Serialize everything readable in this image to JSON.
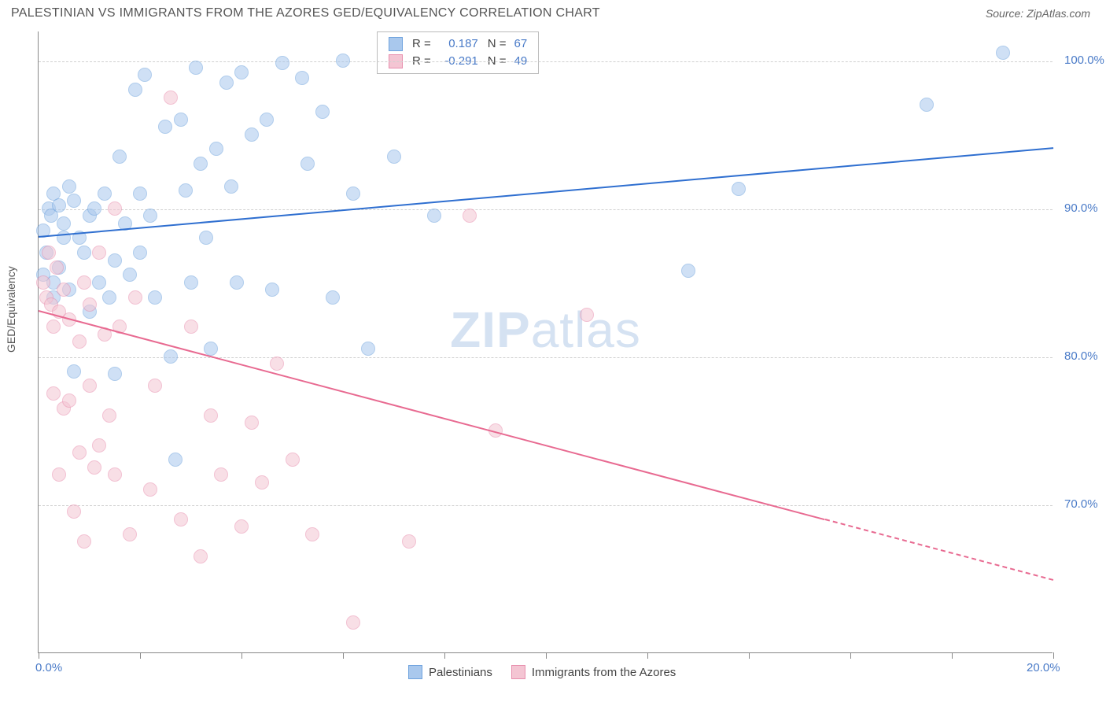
{
  "title": "PALESTINIAN VS IMMIGRANTS FROM THE AZORES GED/EQUIVALENCY CORRELATION CHART",
  "source_label": "Source: ",
  "source_name": "ZipAtlas.com",
  "watermark_bold": "ZIP",
  "watermark_light": "atlas",
  "yaxis_title": "GED/Equivalency",
  "chart": {
    "type": "scatter",
    "xlim": [
      0,
      20
    ],
    "ylim": [
      60,
      102
    ],
    "xtick_positions": [
      0,
      2,
      4,
      6,
      8,
      10,
      12,
      14,
      16,
      18,
      20
    ],
    "xtick_labels": {
      "0": "0.0%",
      "20": "20.0%"
    },
    "ytick_positions": [
      70,
      80,
      90,
      100
    ],
    "ytick_labels": {
      "70": "70.0%",
      "80": "80.0%",
      "90": "90.0%",
      "100": "100.0%"
    },
    "grid_color": "#d0d0d0",
    "axis_color": "#888888",
    "background_color": "#ffffff",
    "label_color": "#4a7bc8",
    "marker_radius": 9
  },
  "series": [
    {
      "name": "Palestinians",
      "fill_color": "#a9c8ed",
      "stroke_color": "#6fa3de",
      "line_color": "#2f6fd0",
      "R": "0.187",
      "N": "67",
      "trend": {
        "x1": 0,
        "y1": 88.2,
        "x2": 20,
        "y2": 94.2,
        "dash_from_x": null
      },
      "points": [
        [
          0.1,
          88.5
        ],
        [
          0.1,
          85.5
        ],
        [
          0.15,
          87.0
        ],
        [
          0.2,
          90.0
        ],
        [
          0.25,
          89.5
        ],
        [
          0.3,
          91.0
        ],
        [
          0.3,
          85.0
        ],
        [
          0.3,
          84.0
        ],
        [
          0.4,
          90.2
        ],
        [
          0.4,
          86.0
        ],
        [
          0.5,
          89.0
        ],
        [
          0.5,
          88.0
        ],
        [
          0.6,
          91.5
        ],
        [
          0.6,
          84.5
        ],
        [
          0.7,
          90.5
        ],
        [
          0.7,
          79.0
        ],
        [
          0.8,
          88.0
        ],
        [
          0.9,
          87.0
        ],
        [
          1.0,
          89.5
        ],
        [
          1.0,
          83.0
        ],
        [
          1.1,
          90.0
        ],
        [
          1.2,
          85.0
        ],
        [
          1.3,
          91.0
        ],
        [
          1.4,
          84.0
        ],
        [
          1.5,
          86.5
        ],
        [
          1.5,
          78.8
        ],
        [
          1.6,
          93.5
        ],
        [
          1.7,
          89.0
        ],
        [
          1.8,
          85.5
        ],
        [
          1.9,
          98.0
        ],
        [
          2.0,
          91.0
        ],
        [
          2.0,
          87.0
        ],
        [
          2.1,
          99.0
        ],
        [
          2.2,
          89.5
        ],
        [
          2.3,
          84.0
        ],
        [
          2.5,
          95.5
        ],
        [
          2.6,
          80.0
        ],
        [
          2.7,
          73.0
        ],
        [
          2.8,
          96.0
        ],
        [
          2.9,
          91.2
        ],
        [
          3.0,
          85.0
        ],
        [
          3.1,
          99.5
        ],
        [
          3.2,
          93.0
        ],
        [
          3.3,
          88.0
        ],
        [
          3.4,
          80.5
        ],
        [
          3.5,
          94.0
        ],
        [
          3.7,
          98.5
        ],
        [
          3.8,
          91.5
        ],
        [
          3.9,
          85.0
        ],
        [
          4.0,
          99.2
        ],
        [
          4.2,
          95.0
        ],
        [
          4.5,
          96.0
        ],
        [
          4.6,
          84.5
        ],
        [
          4.8,
          99.8
        ],
        [
          5.2,
          98.8
        ],
        [
          5.3,
          93.0
        ],
        [
          5.6,
          96.5
        ],
        [
          5.8,
          84.0
        ],
        [
          6.0,
          100.0
        ],
        [
          6.2,
          91.0
        ],
        [
          6.5,
          80.5
        ],
        [
          7.0,
          93.5
        ],
        [
          7.8,
          89.5
        ],
        [
          12.8,
          85.8
        ],
        [
          13.8,
          91.3
        ],
        [
          17.5,
          97.0
        ],
        [
          19.0,
          100.5
        ]
      ]
    },
    {
      "name": "Immigrants from the Azores",
      "fill_color": "#f4c5d3",
      "stroke_color": "#e88fae",
      "line_color": "#e86a91",
      "R": "-0.291",
      "N": "49",
      "trend": {
        "x1": 0,
        "y1": 83.2,
        "x2": 20,
        "y2": 65.0,
        "dash_from_x": 15.5
      },
      "points": [
        [
          0.1,
          85.0
        ],
        [
          0.15,
          84.0
        ],
        [
          0.2,
          87.0
        ],
        [
          0.25,
          83.5
        ],
        [
          0.3,
          82.0
        ],
        [
          0.3,
          77.5
        ],
        [
          0.35,
          86.0
        ],
        [
          0.4,
          83.0
        ],
        [
          0.4,
          72.0
        ],
        [
          0.5,
          84.5
        ],
        [
          0.5,
          76.5
        ],
        [
          0.6,
          82.5
        ],
        [
          0.6,
          77.0
        ],
        [
          0.7,
          69.5
        ],
        [
          0.8,
          81.0
        ],
        [
          0.8,
          73.5
        ],
        [
          0.9,
          85.0
        ],
        [
          0.9,
          67.5
        ],
        [
          1.0,
          83.5
        ],
        [
          1.0,
          78.0
        ],
        [
          1.1,
          72.5
        ],
        [
          1.2,
          87.0
        ],
        [
          1.2,
          74.0
        ],
        [
          1.3,
          81.5
        ],
        [
          1.4,
          76.0
        ],
        [
          1.5,
          90.0
        ],
        [
          1.5,
          72.0
        ],
        [
          1.6,
          82.0
        ],
        [
          1.8,
          68.0
        ],
        [
          1.9,
          84.0
        ],
        [
          2.2,
          71.0
        ],
        [
          2.3,
          78.0
        ],
        [
          2.6,
          97.5
        ],
        [
          2.8,
          69.0
        ],
        [
          3.0,
          82.0
        ],
        [
          3.2,
          66.5
        ],
        [
          3.4,
          76.0
        ],
        [
          3.6,
          72.0
        ],
        [
          4.0,
          68.5
        ],
        [
          4.2,
          75.5
        ],
        [
          4.4,
          71.5
        ],
        [
          4.7,
          79.5
        ],
        [
          5.0,
          73.0
        ],
        [
          5.4,
          68.0
        ],
        [
          6.2,
          62.0
        ],
        [
          7.3,
          67.5
        ],
        [
          8.5,
          89.5
        ],
        [
          9.0,
          75.0
        ],
        [
          10.8,
          82.8
        ]
      ]
    }
  ],
  "legend_top": {
    "r_label": "R  =",
    "n_label": "N  ="
  },
  "legend_bottom": {}
}
